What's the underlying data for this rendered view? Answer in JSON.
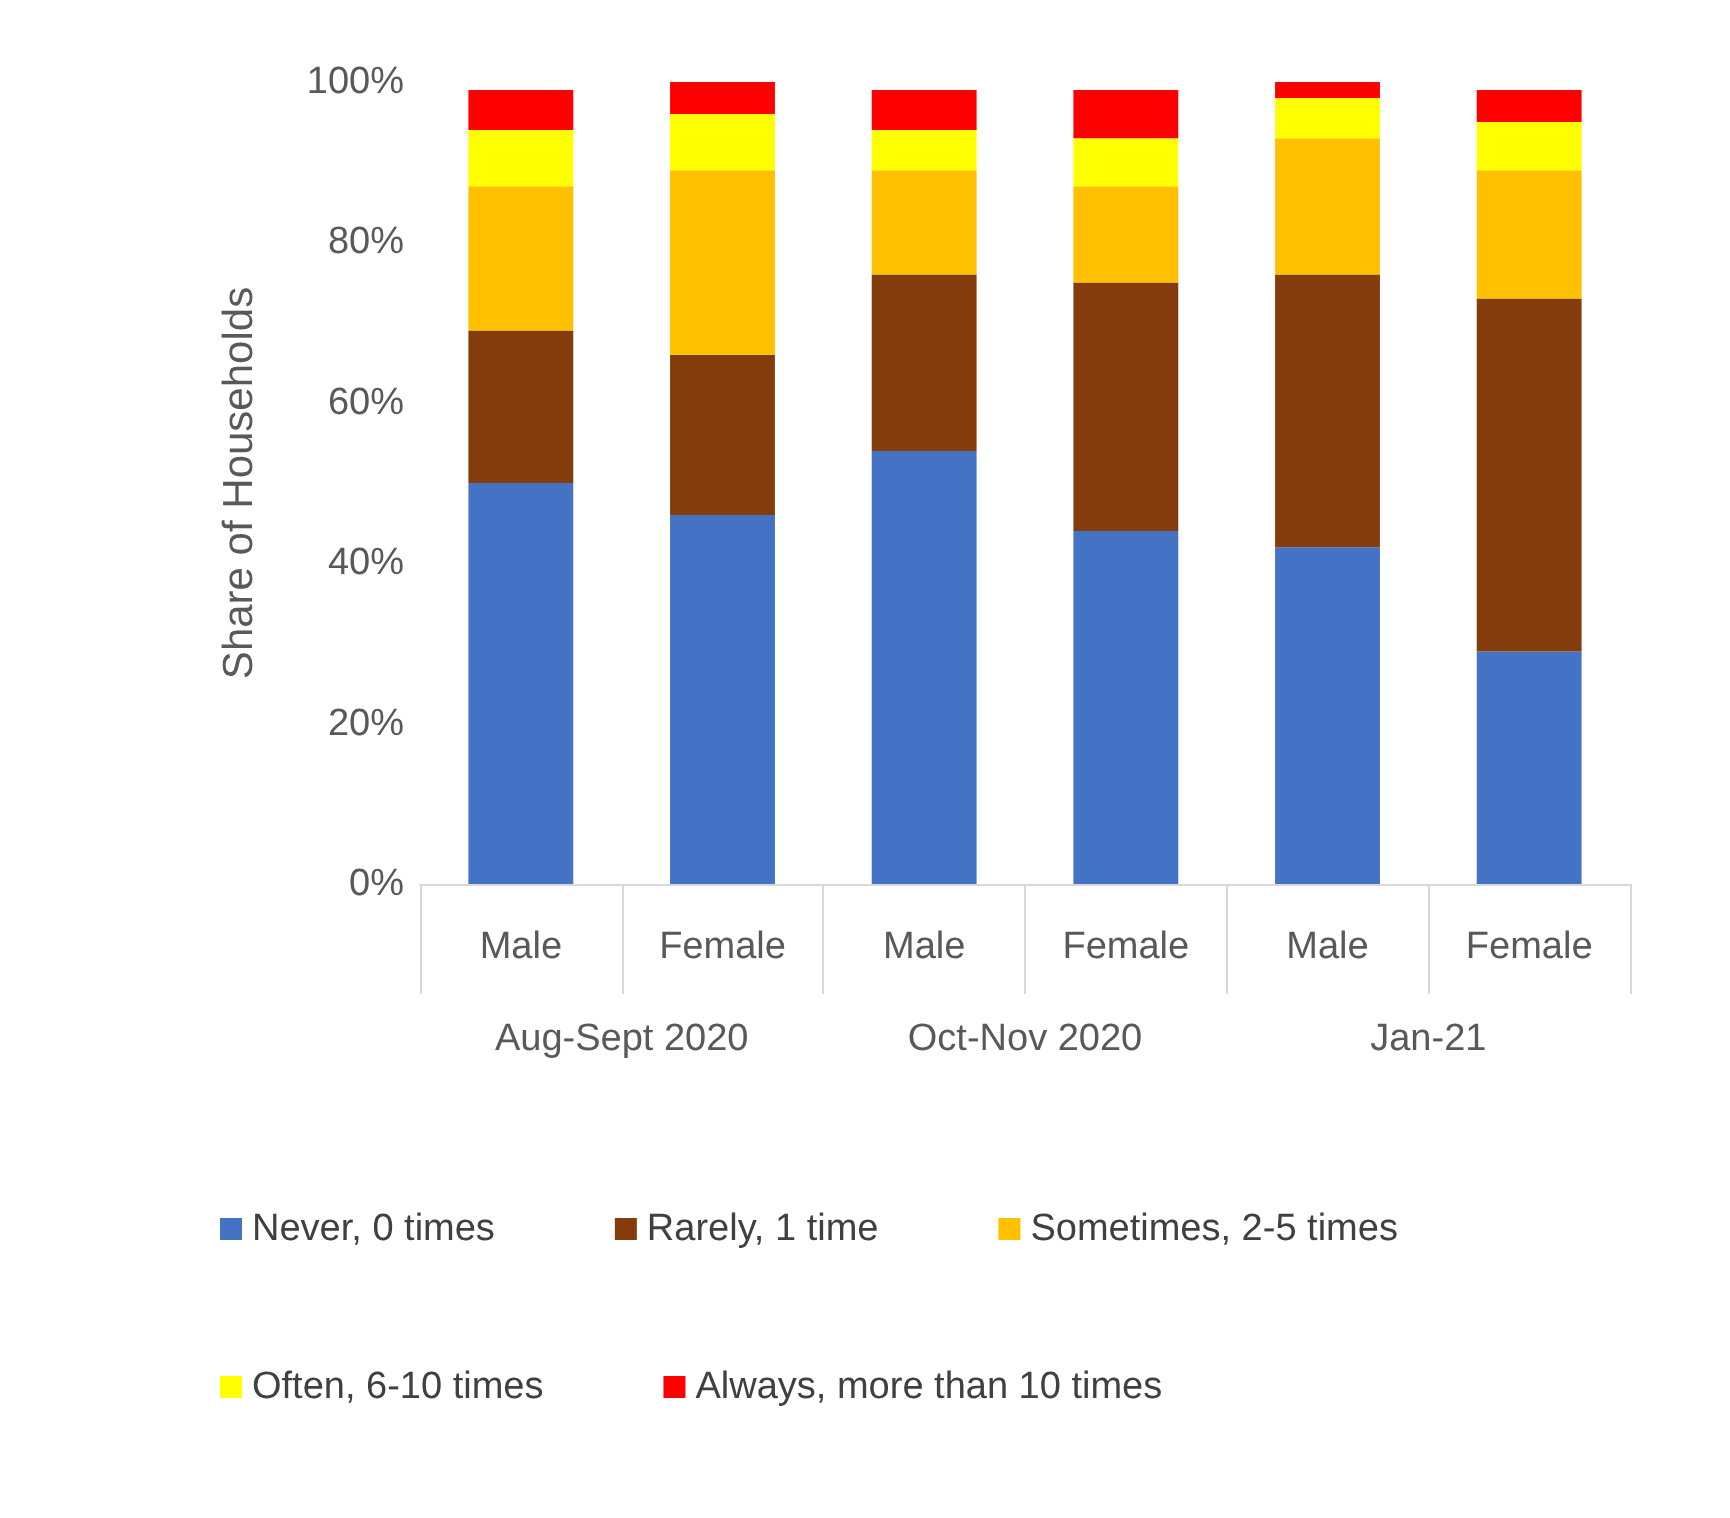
{
  "chart_data": {
    "type": "bar",
    "stacked": true,
    "categories": [
      "Male",
      "Female",
      "Male",
      "Female",
      "Male",
      "Female"
    ],
    "annotations": [
      "Aug-Sept 2020",
      "Oct-Nov 2020",
      "Jan-21"
    ],
    "ylabel": "Share of Households",
    "series": [
      {
        "name": "Never, 0 times",
        "color": "#4472c4",
        "values": [
          50,
          46,
          54,
          44,
          42,
          29
        ]
      },
      {
        "name": "Rarely, 1 time",
        "color": "#843c0c",
        "values": [
          19,
          20,
          22,
          31,
          34,
          44
        ]
      },
      {
        "name": "Sometimes, 2-5 times",
        "color": "#ffc000",
        "values": [
          18,
          23,
          13,
          12,
          17,
          16
        ]
      },
      {
        "name": "Often, 6-10 times",
        "color": "#ffff00",
        "values": [
          7,
          7,
          5,
          6,
          5,
          6
        ]
      },
      {
        "name": "Always, more than 10 times",
        "color": "#ff0000",
        "values": [
          5,
          4,
          5,
          6,
          2,
          4
        ]
      }
    ],
    "ylim": [
      0,
      100
    ],
    "yticks": [
      {
        "value": 0,
        "label": "0%"
      },
      {
        "value": 20,
        "label": "20%"
      },
      {
        "value": 40,
        "label": "40%"
      },
      {
        "value": 60,
        "label": "60%"
      },
      {
        "value": 80,
        "label": "80%"
      },
      {
        "value": 100,
        "label": "100%"
      }
    ],
    "grid": false,
    "legend": "bottom"
  }
}
